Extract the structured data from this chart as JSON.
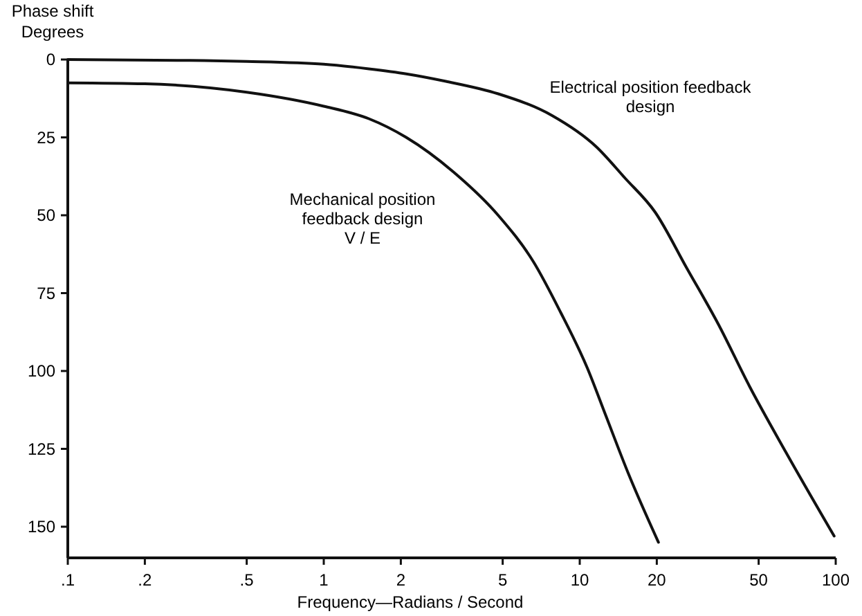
{
  "chart_data": {
    "type": "line",
    "xlabel": "Frequency—Radians / Second",
    "ylabel": "Phase shift\nDegrees",
    "log": "x",
    "grid": false,
    "marker": "none",
    "line_style": "solid",
    "xlim": [
      0.1,
      100
    ],
    "ylim": [
      160,
      0
    ],
    "xticks": [
      {
        "value": 0.1,
        "label": ".1"
      },
      {
        "value": 0.2,
        "label": ".2"
      },
      {
        "value": 0.5,
        "label": ".5"
      },
      1,
      2,
      5,
      10,
      20,
      50,
      100
    ],
    "yticks": [
      0,
      25,
      50,
      75,
      100,
      125,
      150
    ],
    "series": [
      {
        "color": "#111111",
        "x": [
          0.1,
          0.3,
          0.5,
          1,
          1.5,
          2.1,
          3,
          4.8,
          7.8,
          11.6,
          15,
          19.7,
          26.2,
          34.8,
          46.1,
          63.8,
          98.6
        ],
        "values": [
          0,
          0.3,
          0.6,
          1.5,
          3,
          4.6,
          7,
          11,
          18,
          28,
          38,
          49,
          67,
          85,
          105,
          126,
          153
        ]
      },
      {
        "color": "#111111",
        "x": [
          0.1,
          0.2,
          0.5,
          1,
          1.5,
          2.1,
          3.2,
          4.8,
          6.6,
          8.4,
          10.7,
          12.6,
          15.5,
          20.3
        ],
        "values": [
          7.5,
          7.8,
          10.5,
          15,
          19,
          25,
          36,
          50,
          65,
          81,
          99,
          114,
          133,
          155
        ]
      }
    ],
    "annotations": [
      "Electrical position feedback\ndesign",
      "Mechanical position\nfeedback design\nV / E"
    ]
  }
}
